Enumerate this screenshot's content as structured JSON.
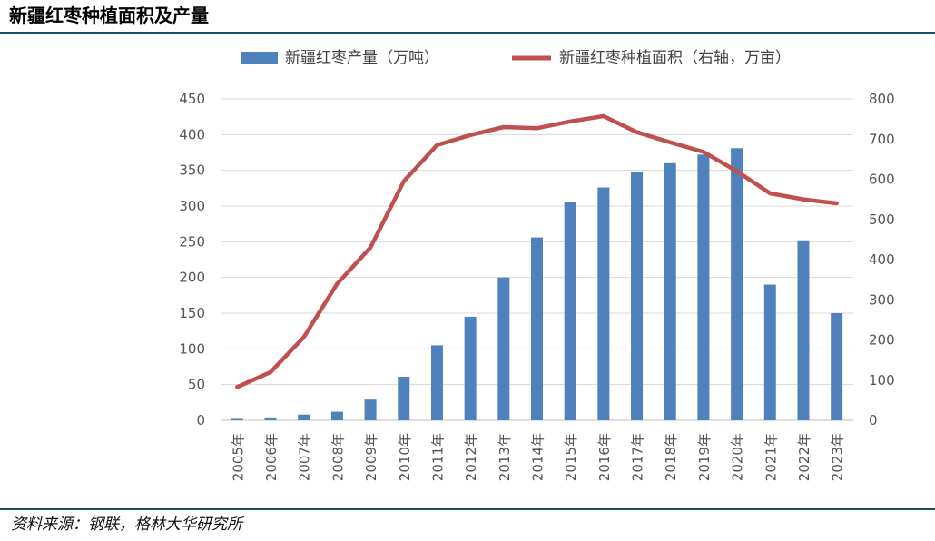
{
  "title": "新疆红枣种植面积及产量",
  "source": "资料来源：钢联，格林大华研究所",
  "chart_data": {
    "type": "bar",
    "categories": [
      "2005年",
      "2006年",
      "2007年",
      "2008年",
      "2009年",
      "2010年",
      "2011年",
      "2012年",
      "2013年",
      "2014年",
      "2015年",
      "2016年",
      "2017年",
      "2018年",
      "2019年",
      "2020年",
      "2021年",
      "2022年",
      "2023年"
    ],
    "series": [
      {
        "name": "新疆红枣产量（万吨）",
        "type": "bar",
        "axis": "left",
        "color": "#4f81bd",
        "values": [
          2,
          4,
          8,
          12,
          29,
          61,
          105,
          145,
          200,
          256,
          306,
          326,
          347,
          360,
          372,
          381,
          190,
          252,
          150
        ]
      },
      {
        "name": "新疆红枣种植面积（右轴，万亩）",
        "type": "line",
        "axis": "right",
        "color": "#c0504d",
        "values": [
          83,
          120,
          207,
          340,
          430,
          595,
          685,
          710,
          730,
          727,
          744,
          757,
          717,
          692,
          668,
          620,
          565,
          550,
          540
        ]
      }
    ],
    "yleft": {
      "lim": [
        0,
        450
      ],
      "ticks": [
        "0",
        "50",
        "100",
        "150",
        "200",
        "250",
        "300",
        "350",
        "400",
        "450"
      ]
    },
    "yright": {
      "lim": [
        0,
        800
      ],
      "ticks": [
        "0",
        "100",
        "200",
        "300",
        "400",
        "500",
        "600",
        "700",
        "800"
      ]
    },
    "grid": true,
    "legend": "top"
  }
}
